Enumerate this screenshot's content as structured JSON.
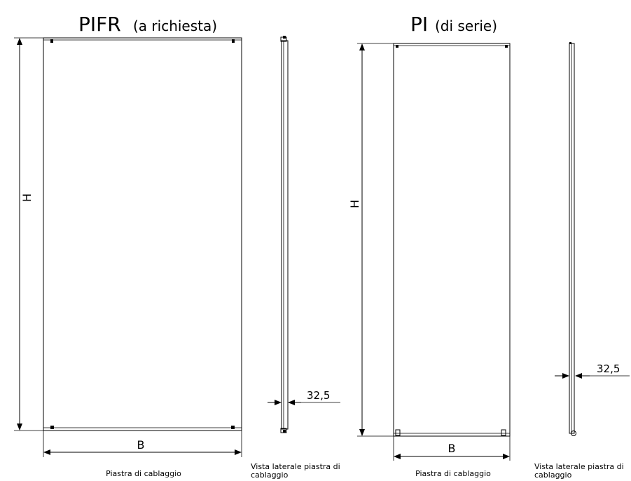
{
  "pifr": {
    "title_main": "PIFR",
    "title_sub": "(a richiesta)",
    "dim_height": "H",
    "dim_width": "B",
    "caption": "Piastra di cablaggio"
  },
  "pifr_side": {
    "dim_depth": "32,5",
    "caption_line1": "Vista laterale piastra di",
    "caption_line2": "cablaggio"
  },
  "pi": {
    "title_main": "PI",
    "title_sub": "(di serie)",
    "dim_height": "H",
    "dim_width": "B",
    "caption": "Piastra di cablaggio"
  },
  "pi_side": {
    "dim_depth": "32,5",
    "caption_line1": "Vista laterale piastra di",
    "caption_line2": "cablaggio"
  }
}
